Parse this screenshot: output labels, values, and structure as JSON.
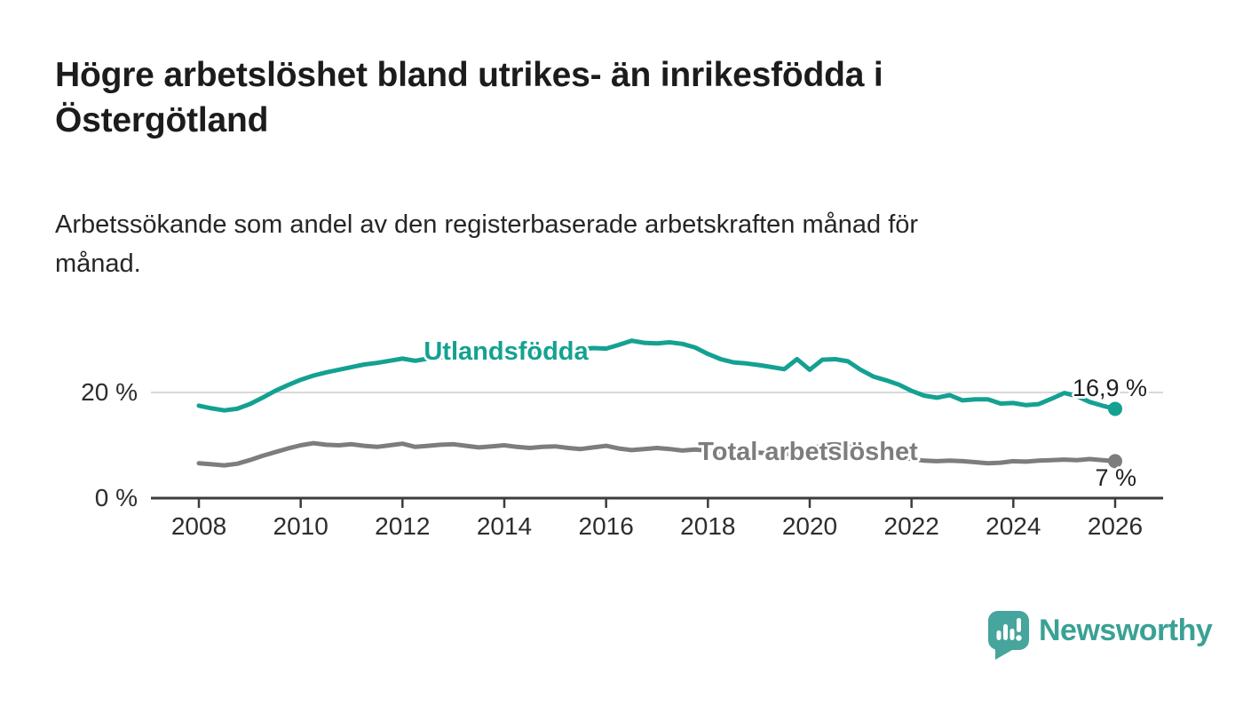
{
  "chart_data": {
    "type": "line",
    "title": "Högre arbetslöshet bland utrikes- än inrikesfödda i\nÖstergötland",
    "subtitle": "Arbetssökande som andel av den registerbaserade arbetskraften månad för\nmånad.",
    "xlabel": "",
    "ylabel": "",
    "x_unit": "decimal_year",
    "ylim": [
      0,
      33
    ],
    "xlim": [
      2008,
      2026
    ],
    "grid": "single horizontal gridline at 20 %",
    "legend_position": "inline labels on lines",
    "x": [
      2008,
      2008.25,
      2008.5,
      2008.75,
      2009,
      2009.25,
      2009.5,
      2009.75,
      2010,
      2010.25,
      2010.5,
      2010.75,
      2011,
      2011.25,
      2011.5,
      2011.75,
      2012,
      2012.25,
      2012.5,
      2012.75,
      2013,
      2013.25,
      2013.5,
      2013.75,
      2014,
      2014.25,
      2014.5,
      2014.75,
      2015,
      2015.25,
      2015.5,
      2015.75,
      2016,
      2016.25,
      2016.5,
      2016.75,
      2017,
      2017.25,
      2017.5,
      2017.75,
      2018,
      2018.25,
      2018.5,
      2018.75,
      2019,
      2019.25,
      2019.5,
      2019.75,
      2020,
      2020.25,
      2020.5,
      2020.75,
      2021,
      2021.25,
      2021.5,
      2021.75,
      2022,
      2022.25,
      2022.5,
      2022.75,
      2023,
      2023.25,
      2023.5,
      2023.75,
      2024,
      2024.25,
      2024.5,
      2024.75,
      2025,
      2025.25,
      2025.5,
      2025.75,
      2026
    ],
    "series": [
      {
        "name": "Utlandsfödda",
        "color": "#14a192",
        "end_label": "16,9 %",
        "end_value": 16.9,
        "values": [
          17.5,
          17.0,
          16.6,
          16.9,
          17.8,
          19.0,
          20.3,
          21.4,
          22.4,
          23.2,
          23.8,
          24.3,
          24.8,
          25.3,
          25.6,
          26.0,
          26.4,
          26.0,
          26.4,
          26.7,
          26.8,
          27.0,
          27.1,
          27.3,
          27.4,
          27.3,
          27.5,
          27.7,
          27.9,
          28.0,
          28.2,
          28.4,
          28.3,
          29.0,
          29.8,
          29.4,
          29.3,
          29.5,
          29.2,
          28.5,
          27.3,
          26.3,
          25.7,
          25.5,
          25.2,
          24.8,
          24.4,
          26.3,
          24.3,
          26.2,
          26.3,
          25.9,
          24.3,
          23.0,
          22.3,
          21.5,
          20.3,
          19.4,
          19.0,
          19.5,
          18.5,
          18.7,
          18.7,
          17.9,
          18.0,
          17.6,
          17.8,
          18.8,
          19.9,
          19.3,
          18.2,
          17.5,
          16.9
        ]
      },
      {
        "name": "Total arbetslöshet",
        "color": "#7d7d7d",
        "end_label": "7 %",
        "end_value": 7.0,
        "values": [
          6.6,
          6.4,
          6.2,
          6.5,
          7.2,
          8.0,
          8.7,
          9.4,
          10.0,
          10.4,
          10.1,
          10.0,
          10.2,
          9.9,
          9.7,
          10.0,
          10.3,
          9.7,
          9.9,
          10.1,
          10.2,
          9.9,
          9.6,
          9.8,
          10.0,
          9.7,
          9.5,
          9.7,
          9.8,
          9.5,
          9.3,
          9.6,
          9.9,
          9.4,
          9.1,
          9.3,
          9.5,
          9.3,
          9.0,
          9.2,
          9.0,
          8.8,
          8.6,
          8.7,
          8.6,
          8.4,
          8.3,
          8.5,
          9.2,
          10.0,
          10.2,
          9.9,
          9.4,
          8.8,
          8.2,
          7.8,
          7.4,
          7.1,
          7.0,
          7.1,
          7.0,
          6.8,
          6.6,
          6.7,
          7.0,
          6.9,
          7.1,
          7.2,
          7.3,
          7.2,
          7.4,
          7.2,
          7.0
        ]
      }
    ],
    "y_ticks": [
      {
        "value": 20,
        "label": "20 %"
      },
      {
        "value": 0,
        "label": "0 %"
      }
    ],
    "x_ticks": [
      {
        "value": 2008,
        "label": "2008"
      },
      {
        "value": 2010,
        "label": "2010"
      },
      {
        "value": 2012,
        "label": "2012"
      },
      {
        "value": 2014,
        "label": "2014"
      },
      {
        "value": 2016,
        "label": "2016"
      },
      {
        "value": 2018,
        "label": "2018"
      },
      {
        "value": 2020,
        "label": "2020"
      },
      {
        "value": 2022,
        "label": "2022"
      },
      {
        "value": 2024,
        "label": "2024"
      },
      {
        "value": 2026,
        "label": "2026"
      }
    ],
    "colors": {
      "grid": "#d9d9d9",
      "axis": "#3c3c3c",
      "tick_text": "#2d2d2d",
      "value_label_text": "#1f1f1f"
    }
  },
  "branding": {
    "logo_text": "Newsworthy",
    "logo_color": "#3aa195",
    "icon_color": "#46a59c",
    "icon": "bar-chart-speech-bubble-icon"
  }
}
